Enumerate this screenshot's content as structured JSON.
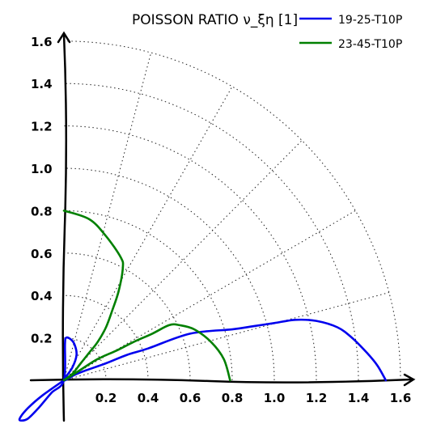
{
  "chart_data": {
    "type": "line",
    "coordinate_system": "polar quadrant (r = value, angle 0–90°)",
    "title": "POISSON RATIO ν_ξη [1]",
    "rlim": [
      0,
      1.6
    ],
    "grid": true,
    "legend_position": "top-right",
    "xticks": [
      "0.2",
      "0.4",
      "0.6",
      "0.8",
      "1.0",
      "1.2",
      "1.4",
      "1.6"
    ],
    "yticks": [
      "0.2",
      "0.4",
      "0.6",
      "0.8",
      "1.0",
      "1.2",
      "1.4",
      "1.6"
    ],
    "colors": {
      "series_1": "#0000ee",
      "series_2": "#008000"
    },
    "series": [
      {
        "name": "19-25-T10P",
        "color": "#0000ee",
        "points": [
          [
            1.53,
            0.0
          ],
          [
            1.49,
            0.07
          ],
          [
            1.44,
            0.13
          ],
          [
            1.37,
            0.2
          ],
          [
            1.3,
            0.25
          ],
          [
            1.2,
            0.28
          ],
          [
            1.1,
            0.285
          ],
          [
            1.0,
            0.27
          ],
          [
            0.9,
            0.255
          ],
          [
            0.8,
            0.24
          ],
          [
            0.6,
            0.22
          ],
          [
            0.4,
            0.15
          ],
          [
            0.3,
            0.12
          ],
          [
            0.2,
            0.08
          ],
          [
            0.1,
            0.045
          ],
          [
            0.05,
            0.025
          ],
          [
            0.0,
            0.0
          ],
          [
            0.04,
            0.06
          ],
          [
            0.06,
            0.12
          ],
          [
            0.05,
            0.17
          ],
          [
            0.03,
            0.195
          ],
          [
            0.01,
            0.2
          ],
          [
            0.005,
            0.17
          ],
          [
            0.0,
            0.0
          ],
          [
            -0.06,
            -0.06
          ],
          [
            -0.12,
            -0.13
          ],
          [
            -0.17,
            -0.18
          ],
          [
            -0.2,
            -0.19
          ],
          [
            -0.21,
            -0.18
          ],
          [
            -0.17,
            -0.13
          ],
          [
            -0.1,
            -0.07
          ],
          [
            0.0,
            0.0
          ]
        ]
      },
      {
        "name": "23-45-T10P",
        "color": "#008000",
        "points": [
          [
            0.0,
            0.8
          ],
          [
            0.12,
            0.76
          ],
          [
            0.2,
            0.68
          ],
          [
            0.27,
            0.58
          ],
          [
            0.28,
            0.53
          ],
          [
            0.26,
            0.42
          ],
          [
            0.23,
            0.33
          ],
          [
            0.2,
            0.25
          ],
          [
            0.16,
            0.18
          ],
          [
            0.12,
            0.13
          ],
          [
            0.08,
            0.08
          ],
          [
            0.04,
            0.03
          ],
          [
            0.0,
            0.0
          ],
          [
            0.08,
            0.05
          ],
          [
            0.16,
            0.1
          ],
          [
            0.25,
            0.14
          ],
          [
            0.33,
            0.18
          ],
          [
            0.42,
            0.22
          ],
          [
            0.5,
            0.26
          ],
          [
            0.55,
            0.26
          ],
          [
            0.62,
            0.24
          ],
          [
            0.7,
            0.18
          ],
          [
            0.76,
            0.1
          ],
          [
            0.79,
            0.0
          ]
        ]
      }
    ]
  }
}
